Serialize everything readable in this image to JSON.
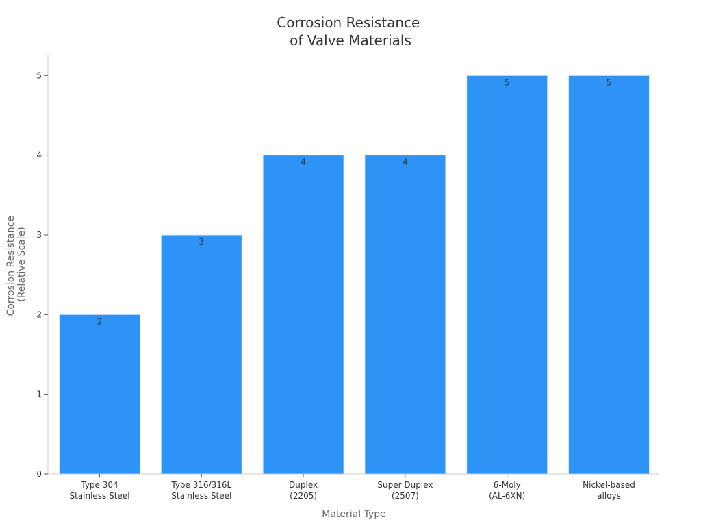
{
  "chart_data": {
    "type": "bar",
    "title": [
      "Corrosion Resistance",
      "of Valve Materials"
    ],
    "xlabel": "Material Type",
    "ylabel": [
      "Corrosion Resistance",
      "(Relative Scale)"
    ],
    "categories": [
      [
        "Type 304",
        "Stainless Steel"
      ],
      [
        "Type 316/316L",
        "Stainless Steel"
      ],
      [
        "Duplex",
        "(2205)"
      ],
      [
        "Super Duplex",
        "(2507)"
      ],
      [
        "6-Moly",
        "(AL-6XN)"
      ],
      [
        "Nickel-based",
        "alloys"
      ]
    ],
    "values": [
      2,
      3,
      4,
      4,
      5,
      5
    ],
    "data_labels": [
      "2",
      "3",
      "4",
      "4",
      "5",
      "5"
    ],
    "yticks": [
      "0",
      "1",
      "2",
      "3",
      "4",
      "5"
    ],
    "ylim": [
      0,
      5.26
    ],
    "grid": false,
    "legend": "none",
    "colors": {
      "bar": "#2e93f7",
      "bar_edge": "#d8e8f8",
      "axis": "#cccccc",
      "text": "#333333",
      "axis_title": "#666666"
    }
  }
}
